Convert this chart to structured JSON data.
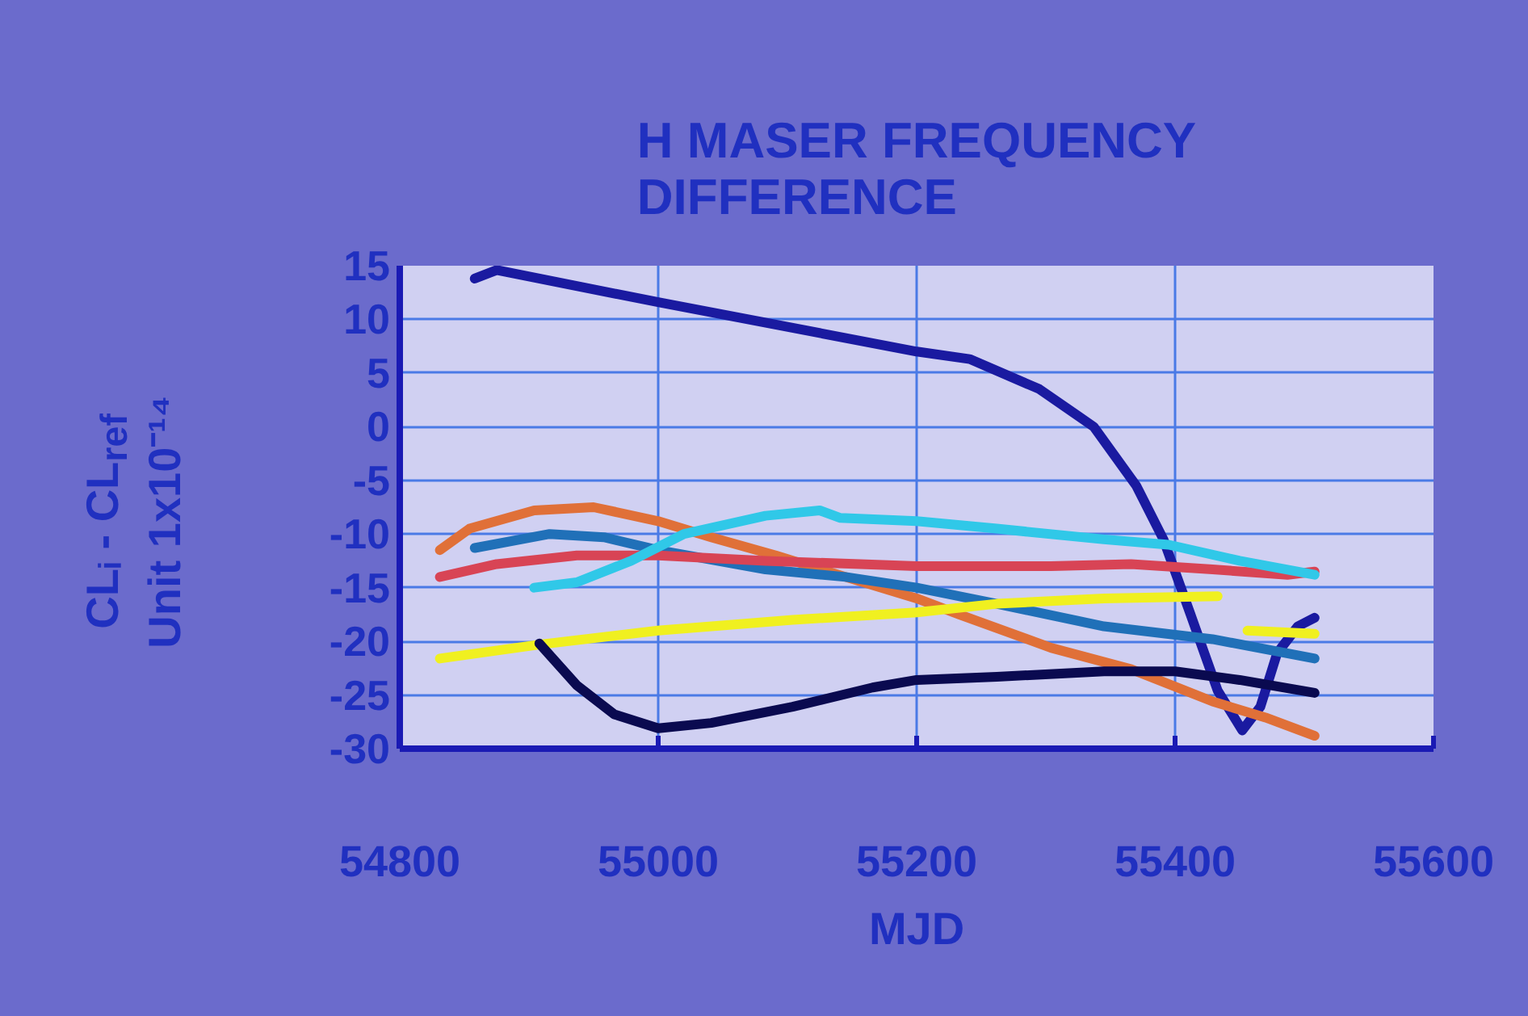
{
  "chart_data": {
    "type": "line",
    "title": "H MASER FREQUENCY\nDIFFERENCE",
    "xlabel": "MJD",
    "ylabel": "CLᵢ - CL$_{ref}$\nUnit 1x10⁻¹⁴",
    "xlim": [
      54800,
      55600
    ],
    "ylim": [
      -30,
      15
    ],
    "xticks": [
      54800,
      55000,
      55200,
      55400,
      55600
    ],
    "yticks": [
      -30,
      -25,
      -20,
      -15,
      -10,
      -5,
      0,
      5,
      10,
      15
    ],
    "grid": true,
    "marker": "none",
    "line_style": "solid",
    "series": [
      {
        "color": "#1a1aa0",
        "x": [
          54858,
          54875,
          55000,
          55200,
          55241,
          55295,
          55337,
          55370,
          55391,
          55412,
          55433,
          55452,
          55466,
          55479,
          55495,
          55508
        ],
        "values": [
          13.8,
          14.6,
          11.6,
          7.0,
          6.3,
          3.5,
          0.0,
          -5.5,
          -10.5,
          -17.5,
          -24.6,
          -28.3,
          -26.1,
          -21.1,
          -18.6,
          -17.8
        ]
      },
      {
        "color": "#e07038",
        "x": [
          54831,
          54854,
          54904,
          54950,
          55000,
          55041,
          55091,
          55145,
          55200,
          55233,
          55304,
          55366,
          55429,
          55470,
          55508
        ],
        "values": [
          -11.5,
          -9.5,
          -7.8,
          -7.5,
          -8.8,
          -10.3,
          -12.0,
          -14.0,
          -16.0,
          -17.5,
          -20.6,
          -22.6,
          -25.6,
          -27.1,
          -28.8
        ]
      },
      {
        "color": "#2070b8",
        "x": [
          54858,
          54916,
          54958,
          55000,
          55083,
          55145,
          55200,
          55262,
          55345,
          55429,
          55508
        ],
        "values": [
          -11.3,
          -10.0,
          -10.3,
          -11.5,
          -13.3,
          -14.0,
          -15.0,
          -16.5,
          -18.6,
          -19.8,
          -21.6
        ]
      },
      {
        "color": "#d84455",
        "x": [
          54831,
          54875,
          54937,
          55000,
          55083,
          55200,
          55304,
          55366,
          55429,
          55487,
          55508
        ],
        "values": [
          -14.0,
          -12.8,
          -12.0,
          -12.0,
          -12.5,
          -13.0,
          -13.0,
          -12.8,
          -13.3,
          -13.8,
          -13.5
        ]
      },
      {
        "color": "#30c8e8",
        "x": [
          54904,
          54937,
          54979,
          55020,
          55083,
          55125,
          55141,
          55200,
          55262,
          55345,
          55395,
          55450,
          55508
        ],
        "values": [
          -15.0,
          -14.5,
          -12.5,
          -10.0,
          -8.3,
          -7.8,
          -8.5,
          -8.8,
          -9.5,
          -10.5,
          -11.0,
          -12.5,
          -13.8
        ]
      },
      {
        "color": "#f0f020",
        "x": [
          54831,
          54908,
          55000,
          55104,
          55200,
          55262,
          55345,
          55433,
          55445,
          55456,
          55508
        ],
        "values": [
          -21.6,
          -20.3,
          -19.0,
          -18.0,
          -17.3,
          -16.5,
          -16.0,
          -15.8,
          null,
          -19.0,
          -19.3
        ]
      },
      {
        "color": "#0a0a50",
        "x": [
          54908,
          54937,
          54966,
          55000,
          55041,
          55104,
          55166,
          55200,
          55262,
          55345,
          55400,
          55450,
          55508
        ],
        "values": [
          -20.2,
          -24.1,
          -26.8,
          -28.1,
          -27.6,
          -26.1,
          -24.3,
          -23.6,
          -23.3,
          -22.8,
          -22.8,
          -23.6,
          -24.8
        ]
      }
    ]
  }
}
